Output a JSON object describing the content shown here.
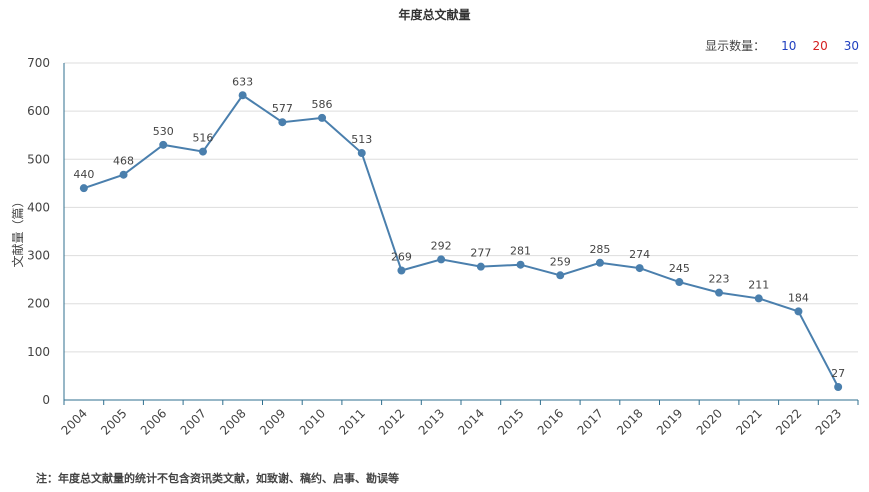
{
  "chart_data": {
    "type": "line",
    "title": "年度总文献量",
    "ylabel": "文献量（篇）",
    "xlabel": "",
    "ylim": [
      0,
      700
    ],
    "yticks": [
      0,
      100,
      200,
      300,
      400,
      500,
      600,
      700
    ],
    "categories": [
      "2004",
      "2005",
      "2006",
      "2007",
      "2008",
      "2009",
      "2010",
      "2011",
      "2012",
      "2013",
      "2014",
      "2015",
      "2016",
      "2017",
      "2018",
      "2019",
      "2020",
      "2021",
      "2022",
      "2023"
    ],
    "values": [
      440,
      468,
      530,
      516,
      633,
      577,
      586,
      513,
      269,
      292,
      277,
      281,
      259,
      285,
      274,
      245,
      223,
      211,
      184,
      27
    ],
    "grid": true,
    "line_color": "#4a7fad"
  },
  "display_count": {
    "label": "显示数量：",
    "options": [
      {
        "label": "10",
        "color": "#1f3fbf"
      },
      {
        "label": "20",
        "color": "#d42020"
      },
      {
        "label": "30",
        "color": "#1f3fbf"
      }
    ]
  },
  "footnote": "注：年度总文献量的统计不包含资讯类文献，如致谢、稿约、启事、勘误等"
}
